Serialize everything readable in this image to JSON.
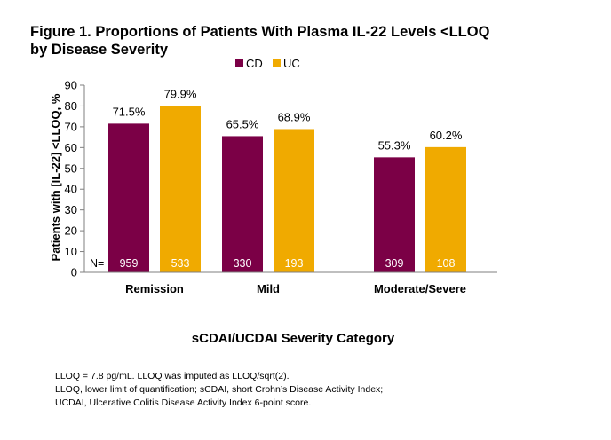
{
  "figure": {
    "title_line1": "Figure 1. Proportions of Patients With Plasma IL-22 Levels <LLOQ",
    "title_line2": "by Disease Severity"
  },
  "chart_data": {
    "type": "bar",
    "categories": [
      "Remission",
      "Mild",
      "Moderate/Severe"
    ],
    "series": [
      {
        "name": "CD",
        "color": "#7b0046",
        "values": [
          71.5,
          65.5,
          55.3
        ],
        "value_labels": [
          "71.5%",
          "65.5%",
          "55.3%"
        ],
        "n_labels": [
          "959",
          "330",
          "309"
        ]
      },
      {
        "name": "UC",
        "color": "#f0aa00",
        "values": [
          79.9,
          68.9,
          60.2
        ],
        "value_labels": [
          "79.9%",
          "68.9%",
          "60.2%"
        ],
        "n_labels": [
          "533",
          "193",
          "108"
        ]
      }
    ],
    "n_prefix": "N=",
    "xlabel": "sCDAI/UCDAI Severity Category",
    "ylabel": "Patients with [IL-22] <LLOQ, %",
    "ylim": [
      0,
      90
    ],
    "yticks": [
      0,
      10,
      20,
      30,
      40,
      50,
      60,
      70,
      80,
      90
    ],
    "legend_position": "top-center",
    "grid": false
  },
  "footnotes": {
    "line1": "LLOQ = 7.8 pg/mL. LLOQ was imputed as LLOQ/sqrt(2).",
    "line2": "LLOQ, lower limit of quantification; sCDAI, short Crohn’s Disease Activity Index;",
    "line3": "UCDAI, Ulcerative Colitis Disease Activity Index 6-point score."
  }
}
